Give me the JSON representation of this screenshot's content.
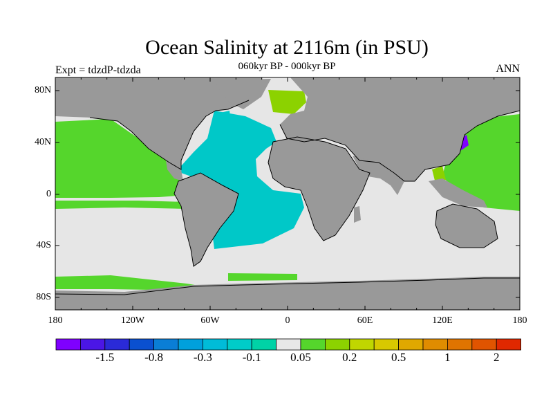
{
  "title": "Ocean Salinity at 2116m (in PSU)",
  "subtitle": "060kyr BP - 000kyr BP",
  "experiment_label": "Expt = tdzdP-tdzda",
  "season_label": "ANN",
  "lat_ticks": [
    "80N",
    "40N",
    "0",
    "40S",
    "80S"
  ],
  "lon_ticks": [
    "180",
    "120W",
    "60W",
    "0",
    "60E",
    "120E",
    "180"
  ],
  "colorbar": {
    "colors": [
      "#7f00ff",
      "#4b16e6",
      "#2a2ad8",
      "#0a50d0",
      "#0a7ed6",
      "#00a0dc",
      "#00bcd8",
      "#00ccc8",
      "#00d2a6",
      "#e8e8e8",
      "#55d62c",
      "#8cd200",
      "#c0d600",
      "#d8c800",
      "#e0a800",
      "#e08c00",
      "#e07400",
      "#e05400",
      "#e02800"
    ],
    "labels": [
      {
        "after_box": 2,
        "text": "-1.5"
      },
      {
        "after_box": 4,
        "text": "-0.8"
      },
      {
        "after_box": 6,
        "text": "-0.3"
      },
      {
        "after_box": 8,
        "text": "-0.1"
      },
      {
        "after_box": 10,
        "text": "0.05"
      },
      {
        "after_box": 12,
        "text": "0.2"
      },
      {
        "after_box": 14,
        "text": "0.5"
      },
      {
        "after_box": 16,
        "text": "1"
      },
      {
        "after_box": 18,
        "text": "2"
      }
    ]
  },
  "colors": {
    "land": "#999999",
    "neutral_ocean": "#e6e6e6",
    "fresh": "#00c8c8",
    "salty": "#55d62c",
    "very_salty": "#8cd200",
    "very_fresh": "#7f00ff",
    "coast": "#000000"
  }
}
